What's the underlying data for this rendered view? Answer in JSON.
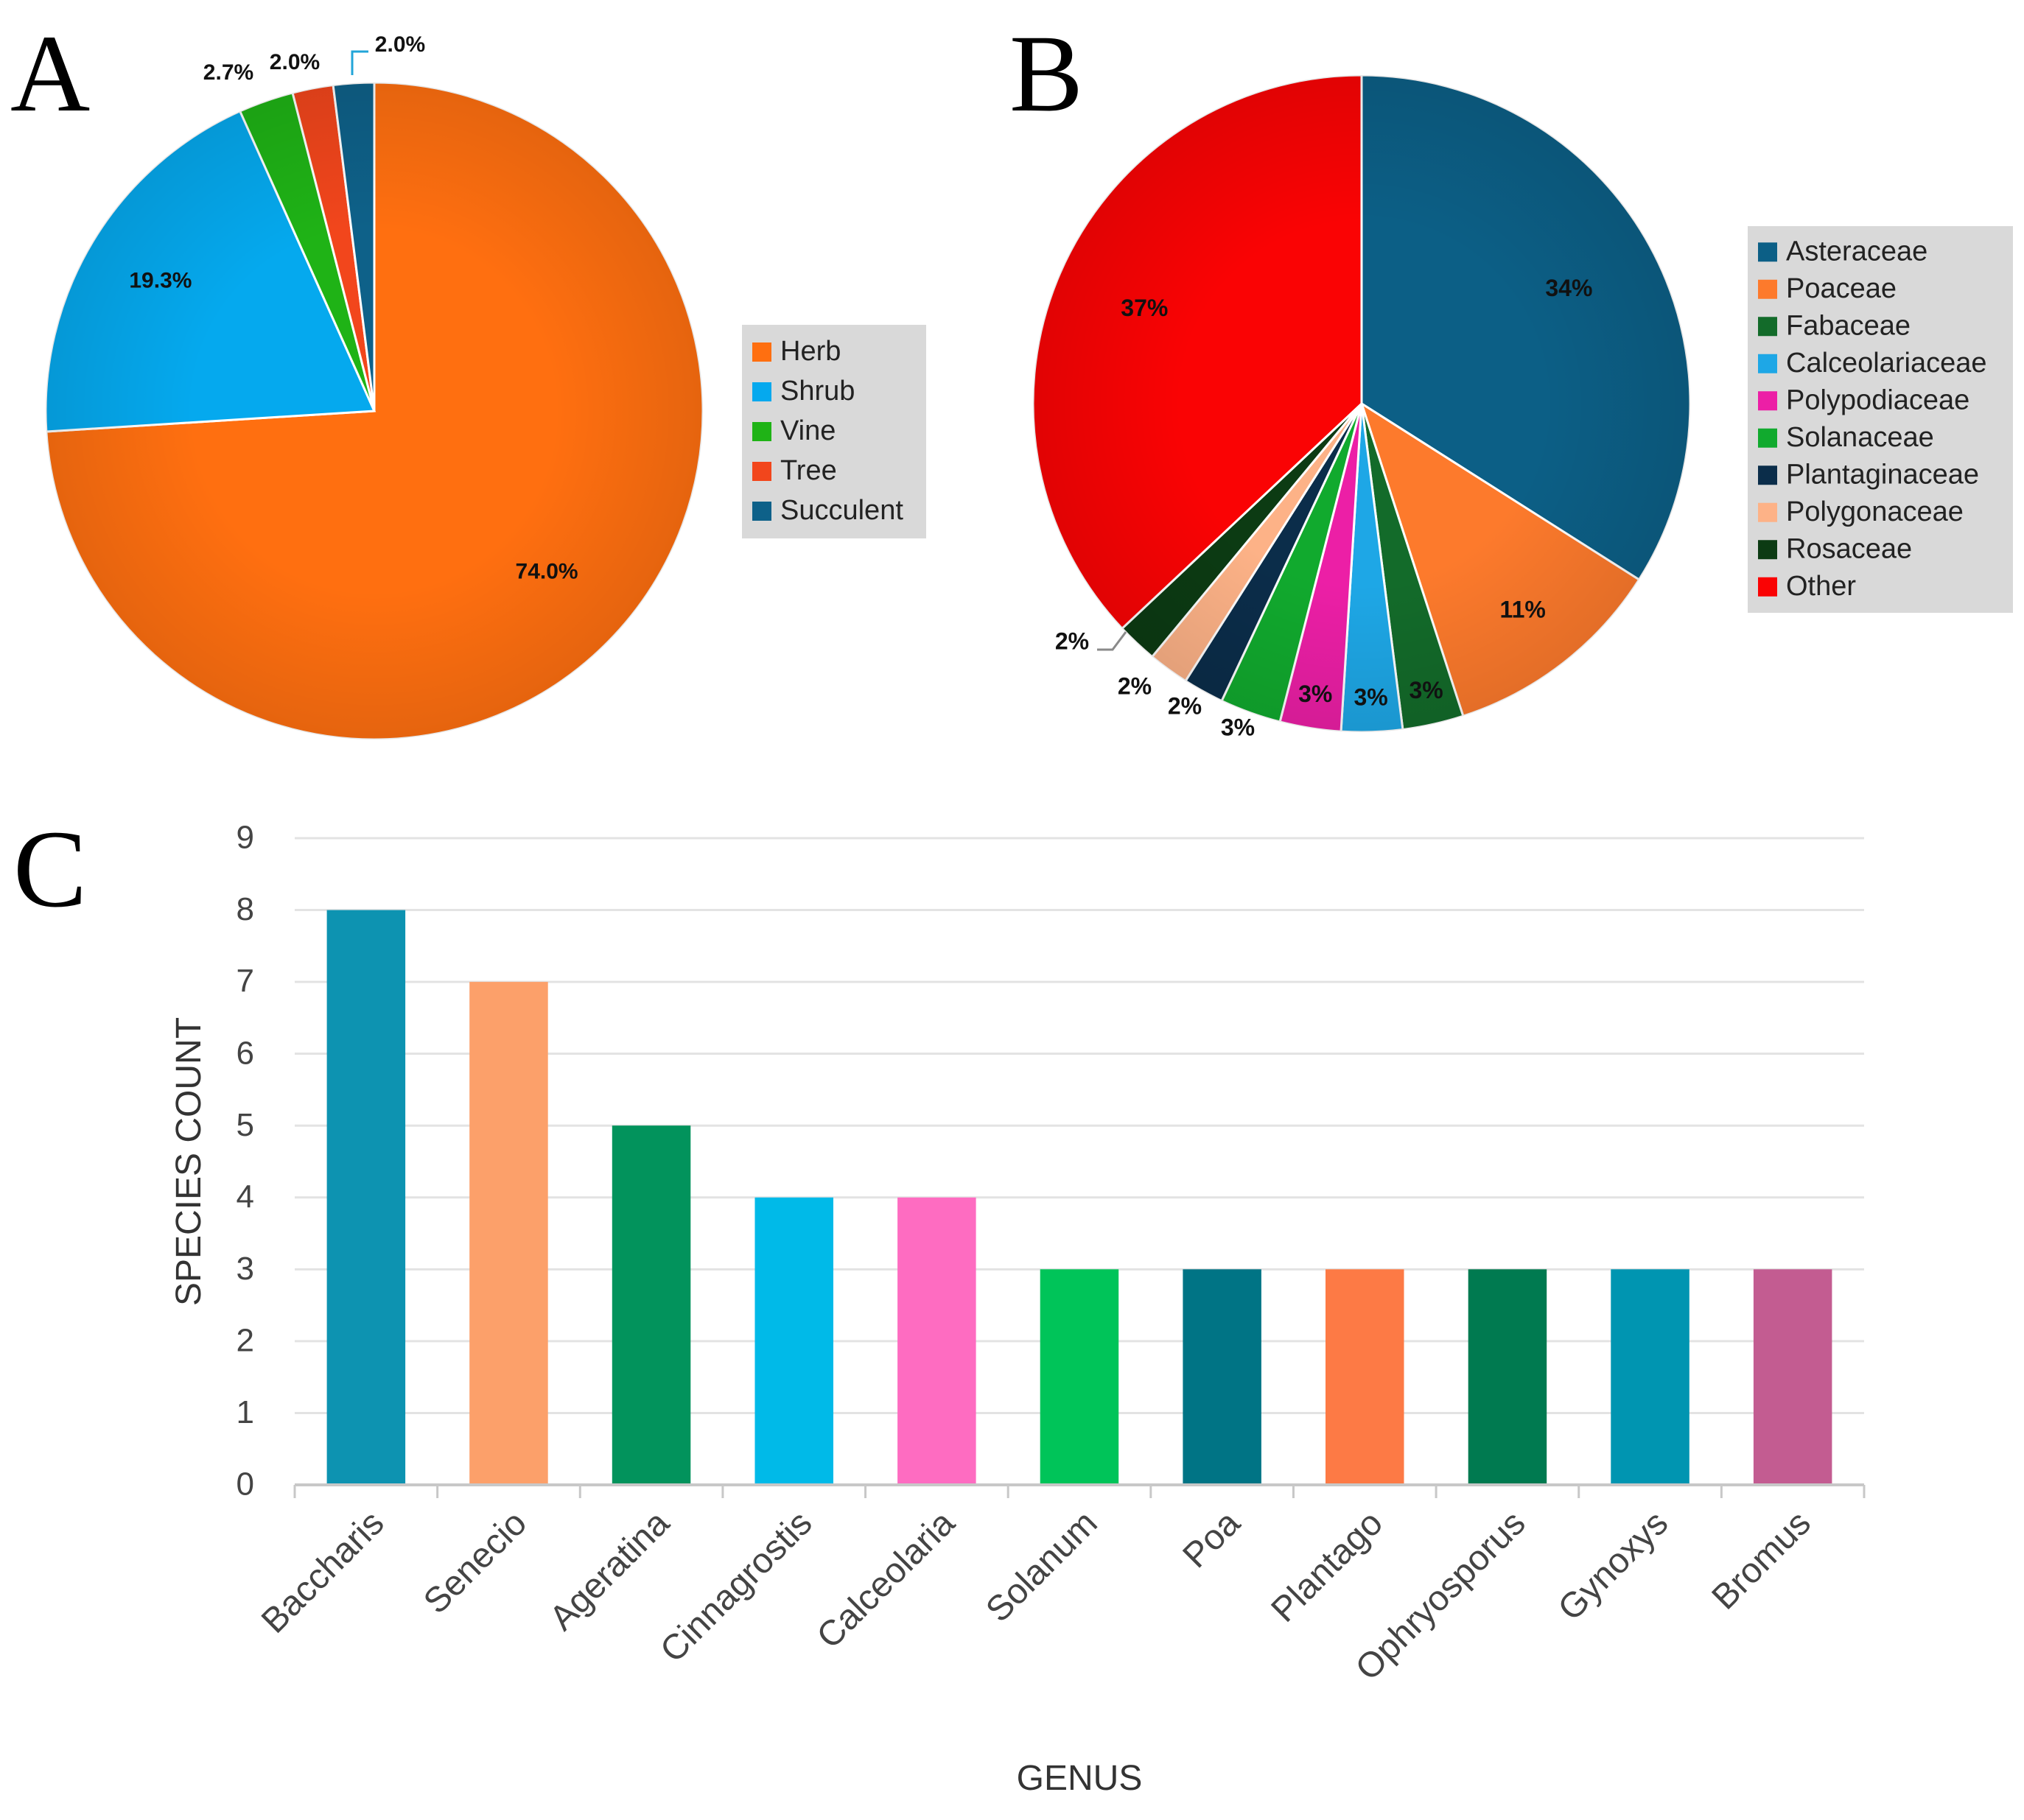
{
  "panels": [
    "A",
    "B",
    "C"
  ],
  "chart_data": [
    {
      "panel": "A",
      "type": "pie",
      "labels": [
        "Herb",
        "Shrub",
        "Vine",
        "Tree",
        "Succulent"
      ],
      "values": [
        74.0,
        19.3,
        2.7,
        2.0,
        2.0
      ],
      "value_labels": [
        "74.0%",
        "19.3%",
        "2.7%",
        "2.0%",
        "2.0%"
      ],
      "colors": [
        "#ff6f10",
        "#05a9ee",
        "#1fb316",
        "#f2461c",
        "#0e6189"
      ],
      "legend": "right"
    },
    {
      "panel": "B",
      "type": "pie",
      "labels": [
        "Asteraceae",
        "Poaceae",
        "Fabaceae",
        "Calceolariaceae",
        "Polypodiaceae",
        "Solanaceae",
        "Plantaginaceae",
        "Polygonaceae",
        "Rosaceae",
        "Other"
      ],
      "values": [
        34,
        11,
        3,
        3,
        3,
        3,
        2,
        2,
        2,
        37
      ],
      "value_labels": [
        "34%",
        "11%",
        "3%",
        "3%",
        "3%",
        "3%",
        "2%",
        "2%",
        "2%",
        "37%"
      ],
      "colors": [
        "#0c5f86",
        "#fd7a2c",
        "#136b2a",
        "#1ea7e6",
        "#ec1fa6",
        "#11aa2e",
        "#0b2d4a",
        "#fdb287",
        "#0c3b13",
        "#fa0304"
      ],
      "legend": "right"
    },
    {
      "panel": "C",
      "type": "bar",
      "categories": [
        "Baccharis",
        "Senecio",
        "Ageratina",
        "Cinnagrostis",
        "Calceolaria",
        "Solanum",
        "Poa",
        "Plantago",
        "Ophryosporus",
        "Gynoxys",
        "Bromus"
      ],
      "values": [
        8,
        7,
        5,
        4,
        4,
        3,
        3,
        3,
        3,
        3,
        3
      ],
      "colors": [
        "#0d93b1",
        "#fca06a",
        "#02935c",
        "#00bae8",
        "#fe6cc1",
        "#00c459",
        "#007485",
        "#fd7a45",
        "#007a50",
        "#0095b1",
        "#c35c91"
      ],
      "xlabel": "GENUS",
      "ylabel": "SPECIES COUNT",
      "yticks": [
        0,
        1,
        2,
        3,
        4,
        5,
        6,
        7,
        8,
        9
      ],
      "ylim": [
        0,
        9
      ],
      "grid": true
    }
  ]
}
